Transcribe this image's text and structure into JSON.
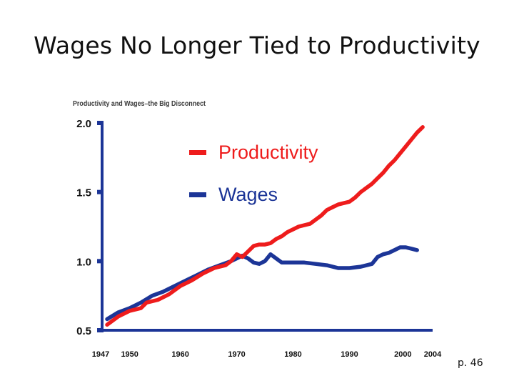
{
  "slide": {
    "title": "Wages No Longer Tied to Productivity",
    "page_label": "p. 46"
  },
  "chart_data": {
    "type": "line",
    "title": "Productivity and Wages–the Big Disconnect",
    "xlabel": "",
    "ylabel": "",
    "xlim": [
      1947,
      2004
    ],
    "ylim": [
      0.5,
      2.0
    ],
    "x_ticks": [
      {
        "value": 1947,
        "label": "1947"
      },
      {
        "value": 1950,
        "label": "1950"
      },
      {
        "value": 1960,
        "label": "1960"
      },
      {
        "value": 1970,
        "label": "1970"
      },
      {
        "value": 1980,
        "label": "1980"
      },
      {
        "value": 1990,
        "label": "1990"
      },
      {
        "value": 2000,
        "label": "2000"
      },
      {
        "value": 2004,
        "label": "2004"
      }
    ],
    "y_ticks": [
      {
        "value": 2.0,
        "label": "2.0"
      },
      {
        "value": 1.5,
        "label": "1.5"
      },
      {
        "value": 1.0,
        "label": "1.0"
      },
      {
        "value": 0.5,
        "label": "0.5"
      }
    ],
    "grid": false,
    "legend_position": "top-center",
    "series": [
      {
        "name": "Productivity",
        "color": "#ee1c1c",
        "points": [
          [
            1947,
            0.54
          ],
          [
            1949,
            0.6
          ],
          [
            1951,
            0.64
          ],
          [
            1953,
            0.66
          ],
          [
            1954,
            0.7
          ],
          [
            1956,
            0.72
          ],
          [
            1958,
            0.76
          ],
          [
            1960,
            0.82
          ],
          [
            1962,
            0.86
          ],
          [
            1964,
            0.91
          ],
          [
            1966,
            0.95
          ],
          [
            1968,
            0.97
          ],
          [
            1969,
            1.0
          ],
          [
            1970,
            1.05
          ],
          [
            1971,
            1.03
          ],
          [
            1972,
            1.07
          ],
          [
            1973,
            1.11
          ],
          [
            1974,
            1.12
          ],
          [
            1975,
            1.12
          ],
          [
            1976,
            1.13
          ],
          [
            1977,
            1.16
          ],
          [
            1978,
            1.18
          ],
          [
            1979,
            1.21
          ],
          [
            1980,
            1.23
          ],
          [
            1981,
            1.25
          ],
          [
            1983,
            1.27
          ],
          [
            1984,
            1.3
          ],
          [
            1985,
            1.33
          ],
          [
            1986,
            1.37
          ],
          [
            1987,
            1.39
          ],
          [
            1988,
            1.41
          ],
          [
            1990,
            1.43
          ],
          [
            1991,
            1.46
          ],
          [
            1992,
            1.5
          ],
          [
            1993,
            1.53
          ],
          [
            1994,
            1.56
          ],
          [
            1995,
            1.6
          ],
          [
            1996,
            1.64
          ],
          [
            1997,
            1.69
          ],
          [
            1998,
            1.73
          ],
          [
            1999,
            1.78
          ],
          [
            2000,
            1.83
          ],
          [
            2001,
            1.88
          ],
          [
            2002,
            1.93
          ],
          [
            2003,
            1.97
          ]
        ]
      },
      {
        "name": "Wages",
        "color": "#1c3597",
        "points": [
          [
            1947,
            0.58
          ],
          [
            1949,
            0.63
          ],
          [
            1951,
            0.66
          ],
          [
            1953,
            0.7
          ],
          [
            1955,
            0.75
          ],
          [
            1957,
            0.78
          ],
          [
            1959,
            0.82
          ],
          [
            1961,
            0.86
          ],
          [
            1963,
            0.9
          ],
          [
            1965,
            0.94
          ],
          [
            1967,
            0.97
          ],
          [
            1969,
            1.0
          ],
          [
            1970,
            1.02
          ],
          [
            1971,
            1.04
          ],
          [
            1972,
            1.02
          ],
          [
            1973,
            0.99
          ],
          [
            1974,
            0.98
          ],
          [
            1975,
            1.0
          ],
          [
            1976,
            1.05
          ],
          [
            1977,
            1.02
          ],
          [
            1978,
            0.99
          ],
          [
            1980,
            0.99
          ],
          [
            1982,
            0.99
          ],
          [
            1984,
            0.98
          ],
          [
            1986,
            0.97
          ],
          [
            1988,
            0.95
          ],
          [
            1990,
            0.95
          ],
          [
            1992,
            0.96
          ],
          [
            1994,
            0.98
          ],
          [
            1995,
            1.03
          ],
          [
            1996,
            1.05
          ],
          [
            1997,
            1.06
          ],
          [
            1998,
            1.08
          ],
          [
            1999,
            1.1
          ],
          [
            2000,
            1.1
          ],
          [
            2001,
            1.09
          ],
          [
            2002,
            1.08
          ]
        ]
      }
    ]
  }
}
